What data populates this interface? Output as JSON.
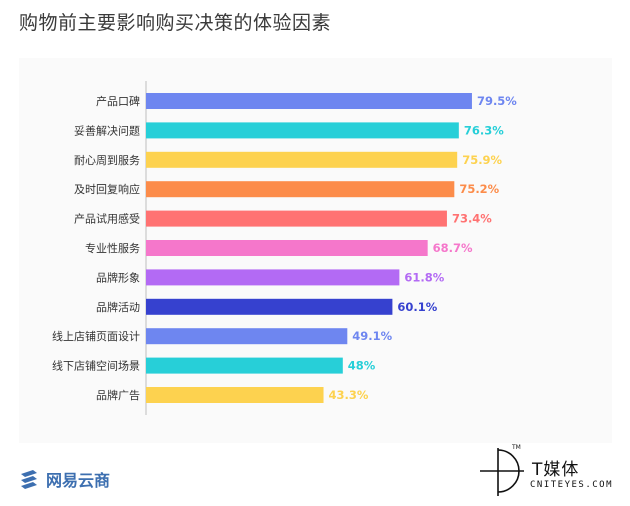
{
  "title": "购物前主要影响购买决策的体验因素",
  "chart_data": {
    "type": "bar",
    "orientation": "horizontal",
    "categories": [
      "产品口碑",
      "妥善解决问题",
      "耐心周到服务",
      "及时回复响应",
      "产品试用感受",
      "专业性服务",
      "品牌形象",
      "品牌活动",
      "线上店铺页面设计",
      "线下店铺空间场景",
      "品牌广告"
    ],
    "values": [
      79.5,
      76.3,
      75.9,
      75.2,
      73.4,
      68.7,
      61.8,
      60.1,
      49.1,
      48,
      43.3
    ],
    "value_labels": [
      "79.5%",
      "76.3%",
      "75.9%",
      "75.2%",
      "73.4%",
      "68.7%",
      "61.8%",
      "60.1%",
      "49.1%",
      "48%",
      "43.3%"
    ],
    "colors": [
      "#6e86f0",
      "#27cfd8",
      "#fdd24f",
      "#fc8c4a",
      "#ff7272",
      "#f577cb",
      "#b36af4",
      "#3641cf",
      "#6e86f0",
      "#27cfd8",
      "#fdd24f"
    ],
    "xlim": [
      0,
      100
    ],
    "grid": false,
    "legend": "none"
  },
  "footer": {
    "source_logo_text": "网易云商",
    "source_logo_color": "#3d6fb0",
    "brand_name": "T媒体",
    "brand_sub": "CNITEYES.COM",
    "brand_tm": "TM"
  }
}
